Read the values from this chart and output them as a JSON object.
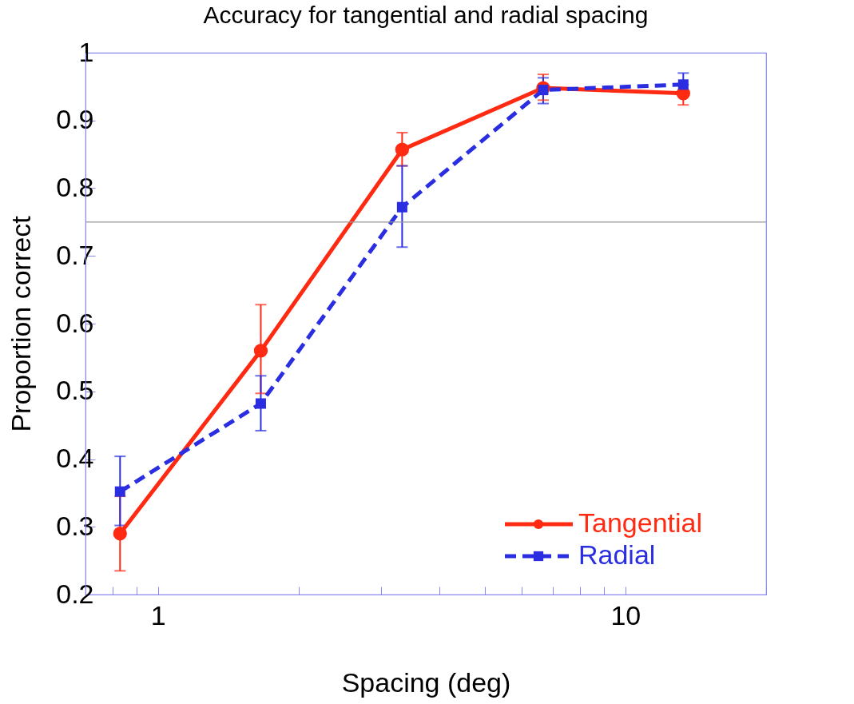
{
  "chart_data": {
    "type": "line",
    "title": "Accuracy for tangential and radial spacing",
    "xlabel": "Spacing (deg)",
    "ylabel": "Proportion correct",
    "x": [
      0.83,
      1.66,
      3.33,
      6.67,
      13.3
    ],
    "series": [
      {
        "name": "Tangential",
        "color": "#ff2a12",
        "marker": "circle",
        "line_style": "solid",
        "values": [
          0.29,
          0.56,
          0.857,
          0.948,
          0.94
        ],
        "errors": [
          [
            0.235,
            0.345
          ],
          [
            0.497,
            0.628
          ],
          [
            0.833,
            0.882
          ],
          [
            0.93,
            0.968
          ],
          [
            0.923,
            0.94
          ]
        ]
      },
      {
        "name": "Radial",
        "color": "#2a2ee0",
        "marker": "square",
        "line_style": "dashed",
        "values": [
          0.352,
          0.482,
          0.772,
          0.945,
          0.953
        ],
        "errors": [
          [
            0.302,
            0.404
          ],
          [
            0.442,
            0.523
          ],
          [
            0.713,
            0.833
          ],
          [
            0.925,
            0.963
          ],
          [
            0.953,
            0.97
          ]
        ]
      }
    ],
    "log": "x",
    "xlim": [
      0.7,
      20
    ],
    "xticks": [
      {
        "value": 0.7,
        "label": null
      },
      {
        "value": 0.8,
        "label": null
      },
      {
        "value": 0.9,
        "label": null
      },
      1,
      {
        "value": 2,
        "label": null
      },
      {
        "value": 3,
        "label": null
      },
      {
        "value": 4,
        "label": null
      },
      {
        "value": 5,
        "label": null
      },
      {
        "value": 6,
        "label": null
      },
      {
        "value": 7,
        "label": null
      },
      {
        "value": 8,
        "label": null
      },
      {
        "value": 9,
        "label": null
      },
      10,
      {
        "value": 20,
        "label": null
      }
    ],
    "ylim": [
      0.2,
      1
    ],
    "yticks": [
      0.2,
      0.3,
      0.4,
      0.5,
      0.6,
      0.7,
      0.8,
      0.9,
      1
    ],
    "ref_lines": [
      {
        "axis": "y",
        "value": 0.75,
        "color": "#999999"
      }
    ],
    "grid": false,
    "legend": "bottom right"
  }
}
